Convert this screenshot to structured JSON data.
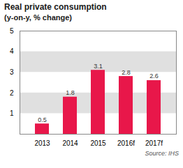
{
  "chart_data": {
    "type": "bar",
    "title": "Real private consumption",
    "subtitle": "(y-on-y, % change)",
    "annotations": [
      "Source: IHS"
    ],
    "categories": [
      "2013",
      "2014",
      "2015",
      "2016f",
      "2017f"
    ],
    "values": [
      0.5,
      1.8,
      3.1,
      2.8,
      2.6
    ],
    "color": "#e8174a",
    "ylim": [
      0,
      5
    ],
    "yticks": [
      1,
      2,
      3,
      4,
      5
    ],
    "grid": false,
    "data_labels": true
  }
}
